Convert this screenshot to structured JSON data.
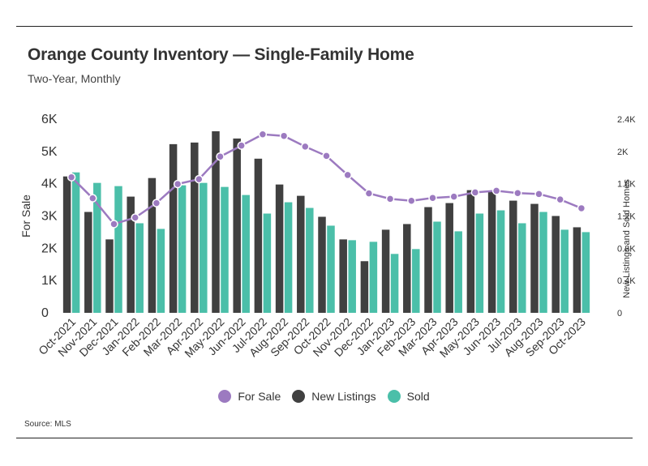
{
  "header": {
    "title": "Orange County Inventory — Single-Family Home",
    "subtitle": "Two-Year, Monthly"
  },
  "footer": {
    "source": "Source: MLS"
  },
  "colors": {
    "for_sale": "#9c7ac0",
    "new_listings": "#404040",
    "sold": "#4bbfa9"
  },
  "chart_data": {
    "type": "bar",
    "categories": [
      "Oct-2021",
      "Nov-2021",
      "Dec-2021",
      "Jan-2022",
      "Feb-2022",
      "Mar-2022",
      "Apr-2022",
      "May-2022",
      "Jun-2022",
      "Jul-2022",
      "Aug-2022",
      "Sep-2022",
      "Oct-2022",
      "Nov-2022",
      "Dec-2022",
      "Jan-2023",
      "Feb-2023",
      "Mar-2023",
      "Apr-2023",
      "May-2023",
      "Jun-2023",
      "Jul-2023",
      "Aug-2023",
      "Sep-2023",
      "Oct-2023"
    ],
    "ylabel": "For Sale",
    "y2label": "New Listings and Sold Homes",
    "ylim": [
      0,
      6000
    ],
    "y2lim": [
      0,
      2400
    ],
    "yticks": [
      "0",
      "1K",
      "2K",
      "3K",
      "4K",
      "5K",
      "6K"
    ],
    "y2ticks": [
      "0",
      "0.4K",
      "0.8K",
      "1.2K",
      "1.6K",
      "2K",
      "2.4K"
    ],
    "legend_position": "bottom",
    "series": [
      {
        "name": "For Sale",
        "type": "line",
        "axis": "left",
        "values": [
          4200,
          3550,
          2750,
          2950,
          3400,
          3990,
          4140,
          4840,
          5180,
          5530,
          5480,
          5150,
          4860,
          4270,
          3700,
          3530,
          3470,
          3560,
          3600,
          3730,
          3780,
          3710,
          3680,
          3510,
          3240
        ]
      },
      {
        "name": "New Listings",
        "type": "bar",
        "axis": "right",
        "values": [
          1690,
          1250,
          910,
          1440,
          1670,
          2090,
          2110,
          2250,
          2160,
          1910,
          1590,
          1450,
          1190,
          910,
          640,
          1030,
          1100,
          1310,
          1360,
          1520,
          1500,
          1390,
          1350,
          1200,
          1060
        ]
      },
      {
        "name": "Sold",
        "type": "bar",
        "axis": "right",
        "values": [
          1740,
          1610,
          1570,
          1110,
          1040,
          1580,
          1610,
          1560,
          1460,
          1230,
          1370,
          1300,
          1080,
          900,
          880,
          730,
          790,
          1130,
          1010,
          1230,
          1270,
          1110,
          1250,
          1030,
          1000
        ]
      }
    ]
  }
}
